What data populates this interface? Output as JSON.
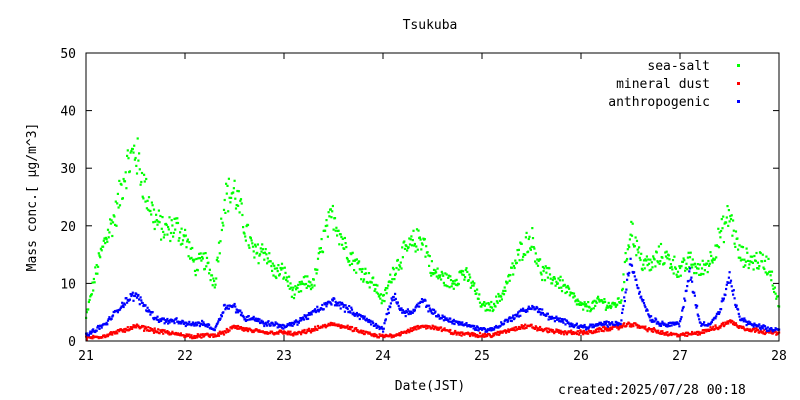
{
  "footer": {
    "created": "created:2025/07/28 00:18"
  },
  "chart_data": {
    "type": "scatter",
    "title": "Tsukuba",
    "xlabel": "Date(JST)",
    "ylabel": "Mass conc.[ μg/m^3]",
    "xlim": [
      21,
      28
    ],
    "ylim": [
      0,
      50
    ],
    "xticks": [
      "21",
      "22",
      "23",
      "24",
      "25",
      "26",
      "27",
      "28"
    ],
    "yticks": [
      "0",
      "10",
      "20",
      "30",
      "40",
      "50"
    ],
    "grid": false,
    "legend_position": "top-right",
    "x": [
      21.0,
      21.1,
      21.2,
      21.3,
      21.4,
      21.5,
      21.6,
      21.7,
      21.8,
      21.9,
      22.0,
      22.1,
      22.2,
      22.3,
      22.4,
      22.5,
      22.6,
      22.7,
      22.8,
      22.9,
      23.0,
      23.1,
      23.2,
      23.3,
      23.4,
      23.5,
      23.6,
      23.7,
      23.8,
      23.9,
      24.0,
      24.1,
      24.2,
      24.3,
      24.4,
      24.5,
      24.6,
      24.7,
      24.8,
      24.9,
      25.0,
      25.1,
      25.2,
      25.3,
      25.4,
      25.5,
      25.6,
      25.7,
      25.8,
      25.9,
      26.0,
      26.1,
      26.2,
      26.3,
      26.4,
      26.5,
      26.6,
      26.7,
      26.8,
      26.9,
      27.0,
      27.1,
      27.2,
      27.3,
      27.4,
      27.5,
      27.6,
      27.7,
      27.8,
      27.9,
      28.0
    ],
    "series": [
      {
        "name": "sea-salt",
        "color": "#00ff00",
        "values": [
          4,
          12,
          18,
          22,
          30,
          33,
          26,
          21,
          19,
          20,
          18,
          13,
          14,
          10,
          25,
          26,
          20,
          15,
          16,
          12,
          12,
          8,
          10,
          10,
          18,
          22,
          17,
          14,
          12,
          10,
          7,
          12,
          15,
          17,
          18,
          12,
          11,
          10,
          12,
          10,
          6,
          6,
          8,
          12,
          16,
          18,
          12,
          11,
          10,
          8,
          6,
          6,
          7,
          6,
          7,
          20,
          14,
          13,
          15,
          14,
          12,
          14,
          12,
          14,
          18,
          22,
          15,
          14,
          14,
          13,
          6
        ]
      },
      {
        "name": "mineral dust",
        "color": "#ff0000",
        "values": [
          0.5,
          0.7,
          1,
          1.5,
          2,
          2.5,
          2.2,
          1.8,
          1.5,
          1.2,
          1,
          0.8,
          1,
          1,
          1.5,
          2.5,
          2,
          1.8,
          1.5,
          1.5,
          1.5,
          1.2,
          1.5,
          2,
          2.5,
          3,
          2.5,
          2,
          1.5,
          1,
          0.8,
          1,
          1.5,
          2,
          2.5,
          2.5,
          2,
          1.5,
          1.2,
          1.2,
          1,
          1,
          1.5,
          2,
          2.5,
          2.5,
          2,
          1.8,
          1.5,
          1.5,
          1.5,
          1.5,
          2,
          2.2,
          2.5,
          3,
          2.5,
          2,
          1.5,
          1.2,
          1,
          1.2,
          1.5,
          2,
          2.5,
          3.5,
          2.5,
          2,
          1.8,
          1.5,
          1.5
        ]
      },
      {
        "name": "anthropogenic",
        "color": "#0000ff",
        "values": [
          1,
          2,
          3,
          5,
          7,
          8,
          6,
          4,
          3.5,
          3.5,
          3,
          3,
          3,
          2,
          6,
          6,
          4,
          4,
          3,
          3,
          2.5,
          3,
          4,
          5,
          6,
          7,
          6,
          5,
          4,
          3,
          2,
          8,
          5,
          5,
          7,
          5,
          4,
          3.5,
          3,
          2.5,
          2,
          2,
          3,
          4,
          5,
          6,
          5,
          4,
          3.5,
          3,
          2.5,
          2.5,
          3,
          3,
          3,
          14,
          8,
          4,
          3,
          3,
          3,
          12,
          3,
          3,
          5,
          11,
          4,
          3,
          2.5,
          2,
          2
        ]
      }
    ]
  }
}
